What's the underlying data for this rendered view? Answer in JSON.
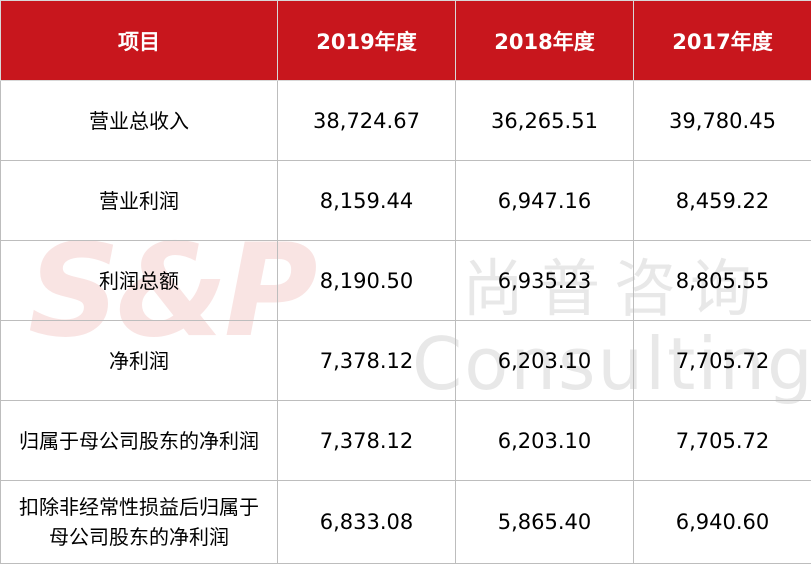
{
  "header": {
    "item": "项目",
    "col_2019": "2019年度",
    "col_2018": "2018年度",
    "col_2017": "2017年度"
  },
  "rows": [
    {
      "label": "营业总收入",
      "v2019": "38,724.67",
      "v2018": "36,265.51",
      "v2017": "39,780.45"
    },
    {
      "label": "营业利润",
      "v2019": "8,159.44",
      "v2018": "6,947.16",
      "v2017": "8,459.22"
    },
    {
      "label": "利润总额",
      "v2019": "8,190.50",
      "v2018": "6,935.23",
      "v2017": "8,805.55"
    },
    {
      "label": "净利润",
      "v2019": "7,378.12",
      "v2018": "6,203.10",
      "v2017": "7,705.72"
    },
    {
      "label": "归属于母公司股东的净利润",
      "v2019": "7,378.12",
      "v2018": "6,203.10",
      "v2017": "7,705.72"
    },
    {
      "label_line1": "扣除非经常性损益后归属于",
      "label_line2": "母公司股东的净利润",
      "v2019": "6,833.08",
      "v2018": "5,865.40",
      "v2017": "6,940.60"
    }
  ],
  "watermark": {
    "logo": "S&P",
    "cn": "尚普咨询",
    "en": "Consulting"
  },
  "colors": {
    "header_bg": "#c8161d",
    "header_text": "#ffffff",
    "grid": "#bdbdbd"
  }
}
